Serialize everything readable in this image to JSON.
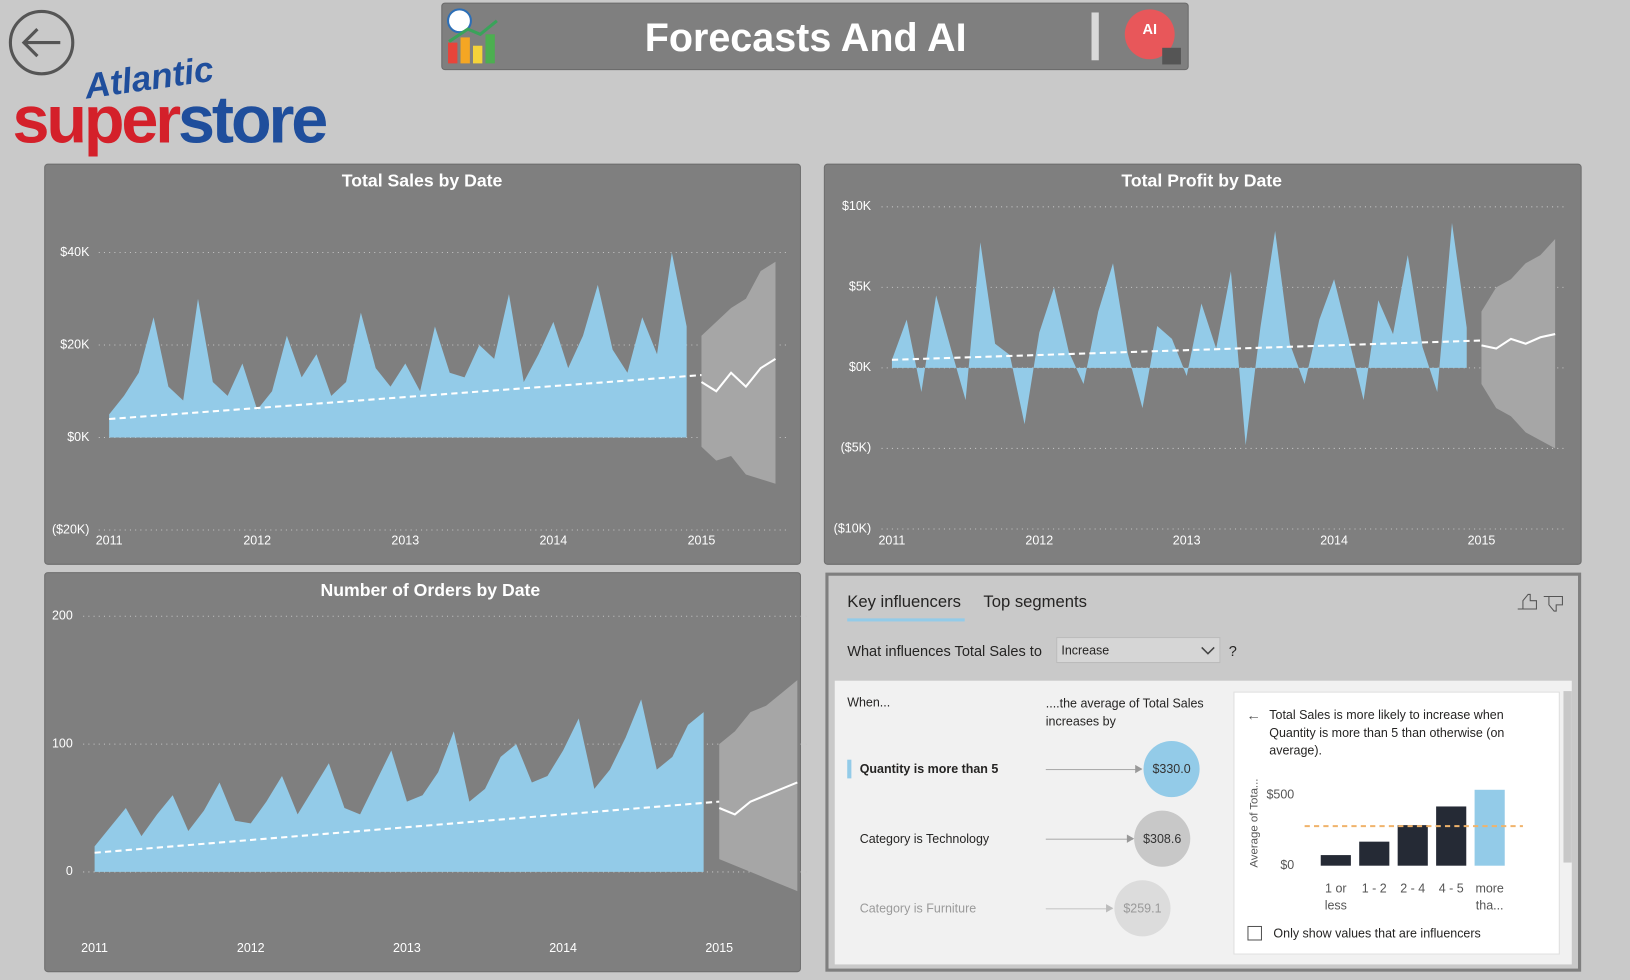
{
  "header": {
    "title": "Forecasts And AI"
  },
  "logo": {
    "script": "Atlantic",
    "left": "super",
    "right": "store"
  },
  "chart_data": [
    {
      "type": "area",
      "title": "Total Sales by Date",
      "x": [
        2011,
        2011.1,
        2011.2,
        2011.3,
        2011.4,
        2011.5,
        2011.6,
        2011.7,
        2011.8,
        2011.9,
        2012,
        2012.1,
        2012.2,
        2012.3,
        2012.4,
        2012.5,
        2012.6,
        2012.7,
        2012.8,
        2012.9,
        2013,
        2013.1,
        2013.2,
        2013.3,
        2013.4,
        2013.5,
        2013.6,
        2013.7,
        2013.8,
        2013.9,
        2014,
        2014.1,
        2014.2,
        2014.3,
        2014.4,
        2014.5,
        2014.6,
        2014.7,
        2014.8,
        2014.9
      ],
      "values": [
        5000,
        9000,
        14000,
        26000,
        11000,
        8000,
        30000,
        12000,
        9000,
        16000,
        6000,
        10000,
        22000,
        13000,
        18000,
        9000,
        12000,
        27000,
        15000,
        11000,
        16000,
        10000,
        24000,
        14000,
        13000,
        20000,
        17000,
        31000,
        12000,
        18000,
        25000,
        15000,
        22000,
        33000,
        19000,
        14000,
        26000,
        18000,
        40000,
        24000
      ],
      "color": "#93cbe8",
      "trend": {
        "x": [
          2011,
          2015
        ],
        "values": [
          4000,
          13500
        ],
        "color": "#ffffff"
      },
      "forecast": {
        "x": [
          2015,
          2015.1,
          2015.2,
          2015.3,
          2015.4,
          2015.5
        ],
        "values": [
          12000,
          10000,
          14000,
          11000,
          15000,
          17000
        ],
        "lower": [
          -2000,
          -5000,
          -4000,
          -8000,
          -9000,
          -10000
        ],
        "upper": [
          22000,
          25000,
          28000,
          30000,
          36000,
          38000
        ],
        "color": "#ffffff",
        "band_color": "#a6a6a6"
      },
      "xlim": [
        2011,
        2015.5
      ],
      "ylim": [
        -20000,
        40000
      ],
      "xticks": [
        2011,
        2012,
        2013,
        2014,
        2015
      ],
      "yticks": [
        {
          "value": -20000,
          "label": "($20K)"
        },
        {
          "value": 0,
          "label": "$0K"
        },
        {
          "value": 20000,
          "label": "$20K"
        },
        {
          "value": 40000,
          "label": "$40K"
        }
      ],
      "grid": true
    },
    {
      "type": "area",
      "title": "Total Profit by Date",
      "x": [
        2011,
        2011.1,
        2011.2,
        2011.3,
        2011.4,
        2011.5,
        2011.6,
        2011.7,
        2011.8,
        2011.9,
        2012,
        2012.1,
        2012.2,
        2012.3,
        2012.4,
        2012.5,
        2012.6,
        2012.7,
        2012.8,
        2012.9,
        2013,
        2013.1,
        2013.2,
        2013.3,
        2013.4,
        2013.5,
        2013.6,
        2013.7,
        2013.8,
        2013.9,
        2014,
        2014.1,
        2014.2,
        2014.3,
        2014.4,
        2014.5,
        2014.6,
        2014.7,
        2014.8,
        2014.9
      ],
      "values": [
        500,
        3000,
        -1500,
        4500,
        1200,
        -2000,
        7800,
        1500,
        800,
        -3500,
        2200,
        5000,
        1000,
        -1000,
        3500,
        6500,
        900,
        -2500,
        2600,
        1800,
        -500,
        4000,
        1200,
        6000,
        -4800,
        2500,
        8500,
        1500,
        -1000,
        3000,
        5500,
        1800,
        -2000,
        4200,
        2100,
        7000,
        1300,
        -1500,
        9000,
        2500
      ],
      "color": "#93cbe8",
      "trend": {
        "x": [
          2011,
          2015
        ],
        "values": [
          500,
          1700
        ],
        "color": "#ffffff"
      },
      "forecast": {
        "x": [
          2015,
          2015.1,
          2015.2,
          2015.3,
          2015.4,
          2015.5
        ],
        "values": [
          1400,
          1200,
          1800,
          1500,
          1900,
          2100
        ],
        "lower": [
          -1000,
          -2500,
          -3000,
          -4000,
          -4500,
          -5000
        ],
        "upper": [
          3500,
          5000,
          5500,
          6500,
          7000,
          8000
        ],
        "color": "#ffffff",
        "band_color": "#a6a6a6"
      },
      "xlim": [
        2011,
        2015.5
      ],
      "ylim": [
        -10000,
        10000
      ],
      "xticks": [
        2011,
        2012,
        2013,
        2014,
        2015
      ],
      "yticks": [
        {
          "value": -10000,
          "label": "($10K)"
        },
        {
          "value": -5000,
          "label": "($5K)"
        },
        {
          "value": 0,
          "label": "$0K"
        },
        {
          "value": 5000,
          "label": "$5K"
        },
        {
          "value": 10000,
          "label": "$10K"
        }
      ],
      "grid": true
    },
    {
      "type": "area",
      "title": "Number of Orders by Date",
      "x": [
        2011,
        2011.1,
        2011.2,
        2011.3,
        2011.4,
        2011.5,
        2011.6,
        2011.7,
        2011.8,
        2011.9,
        2012,
        2012.1,
        2012.2,
        2012.3,
        2012.4,
        2012.5,
        2012.6,
        2012.7,
        2012.8,
        2012.9,
        2013,
        2013.1,
        2013.2,
        2013.3,
        2013.4,
        2013.5,
        2013.6,
        2013.7,
        2013.8,
        2013.9,
        2014,
        2014.1,
        2014.2,
        2014.3,
        2014.4,
        2014.5,
        2014.6,
        2014.7,
        2014.8,
        2014.9
      ],
      "values": [
        20,
        35,
        50,
        28,
        45,
        60,
        32,
        48,
        70,
        40,
        38,
        55,
        75,
        45,
        65,
        85,
        50,
        45,
        70,
        95,
        55,
        60,
        78,
        110,
        55,
        65,
        90,
        100,
        70,
        75,
        95,
        120,
        65,
        80,
        105,
        135,
        80,
        90,
        115,
        125
      ],
      "color": "#93cbe8",
      "trend": {
        "x": [
          2011,
          2015
        ],
        "values": [
          15,
          55
        ],
        "color": "#ffffff"
      },
      "forecast": {
        "x": [
          2015,
          2015.1,
          2015.2,
          2015.3,
          2015.4,
          2015.5
        ],
        "values": [
          50,
          45,
          55,
          60,
          65,
          70
        ],
        "lower": [
          10,
          5,
          0,
          -5,
          -10,
          -15
        ],
        "upper": [
          100,
          110,
          125,
          130,
          140,
          150
        ],
        "color": "#ffffff",
        "band_color": "#a6a6a6"
      },
      "xlim": [
        2011,
        2015.5
      ],
      "ylim": [
        0,
        200
      ],
      "xticks": [
        2011,
        2012,
        2013,
        2014,
        2015
      ],
      "yticks": [
        0,
        100,
        200
      ],
      "grid": true
    },
    {
      "type": "bar",
      "y_label": "Average of Tota...",
      "categories": [
        "1 or less",
        "1 - 2",
        "2 - 4",
        "4 - 5",
        "more tha..."
      ],
      "values": [
        75,
        170,
        287,
        419,
        537
      ],
      "colors": [
        "#252a35",
        "#252a35",
        "#252a35",
        "#252a35",
        "#93cbe8"
      ],
      "reference_line": {
        "value": 280,
        "color": "#f0b36b"
      },
      "ylim": [
        0,
        600
      ],
      "yticks": [
        {
          "value": 0,
          "label": "$0"
        },
        {
          "value": 500,
          "label": "$500"
        }
      ],
      "grid": false
    }
  ],
  "key_influencers": {
    "tabs": [
      "Key influencers",
      "Top segments"
    ],
    "question": {
      "prefix": "What influences Total Sales to",
      "selection": "Increase",
      "suffix": "?"
    },
    "columns": [
      "When...",
      "....the average of Total Sales increases by"
    ],
    "rows": [
      {
        "label": "Quantity is more than 5",
        "value": 330.0,
        "value_label": "$330.0"
      },
      {
        "label": "Category is Technology",
        "value": 308.6,
        "value_label": "$308.6"
      },
      {
        "label": "Category is Furniture",
        "value": 259.1,
        "value_label": "$259.1"
      }
    ],
    "detail": {
      "text": "Total Sales is more likely to increase when Quantity is more than 5 than otherwise (on average).",
      "checkbox": "Only show values that are influencers"
    }
  }
}
